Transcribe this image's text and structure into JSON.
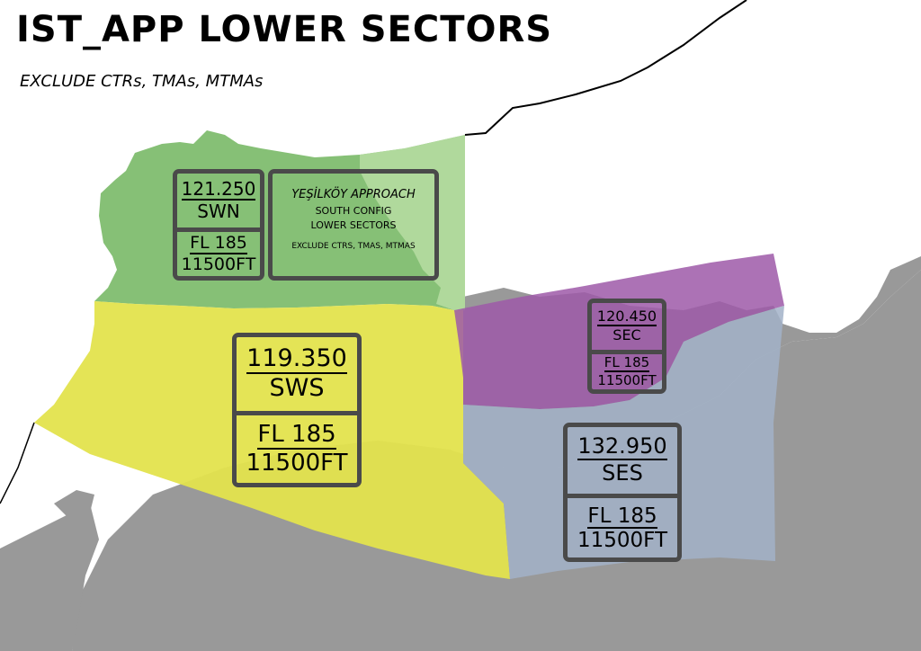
{
  "title": "IST_APP LOWER SECTORS",
  "subtitle": "EXCLUDE CTRs, TMAs, MTMAs",
  "colors": {
    "land": "#999999",
    "swn": "#7fbd6f",
    "swn_light": "#b5dca1",
    "sws": "#e3e34d",
    "sec": "#9e59a8",
    "ses": "#a2b2c8",
    "box_border": "#4a4a4a"
  },
  "info_box": {
    "line1": "YEŞİLKÖY APPROACH",
    "line2": "SOUTH CONFIG",
    "line3": "LOWER SECTORS",
    "line4": "EXCLUDE CTRS, TMAS, MTMAS"
  },
  "sectors": {
    "swn": {
      "frequency": "121.250",
      "name": "SWN",
      "level": "FL 185",
      "altitude": "11500FT"
    },
    "sws": {
      "frequency": "119.350",
      "name": "SWS",
      "level": "FL 185",
      "altitude": "11500FT"
    },
    "sec": {
      "frequency": "120.450",
      "name": "SEC",
      "level": "FL 185",
      "altitude": "11500FT"
    },
    "ses": {
      "frequency": "132.950",
      "name": "SES",
      "level": "FL 185",
      "altitude": "11500FT"
    }
  }
}
